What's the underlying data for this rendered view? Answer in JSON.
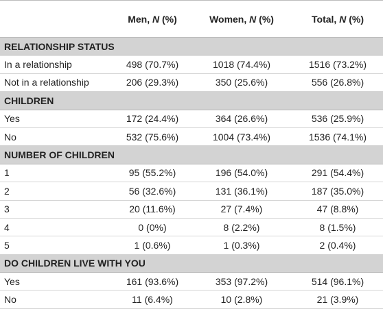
{
  "table": {
    "header": [
      {
        "text": "Men, ",
        "em": "N",
        "tail": " (%)"
      },
      {
        "text": "Women, ",
        "em": "N",
        "tail": " (%)"
      },
      {
        "text": "Total, ",
        "em": "N",
        "tail": " (%)"
      }
    ],
    "sections": [
      {
        "title": "RELATIONSHIP STATUS",
        "rows": [
          [
            "In a relationship",
            "498 (70.7%)",
            "1018 (74.4%)",
            "1516 (73.2%)"
          ],
          [
            "Not in a relationship",
            "206 (29.3%)",
            "350 (25.6%)",
            "556 (26.8%)"
          ]
        ]
      },
      {
        "title": "CHILDREN",
        "rows": [
          [
            "Yes",
            "172 (24.4%)",
            "364 (26.6%)",
            "536 (25.9%)"
          ],
          [
            "No",
            "532 (75.6%)",
            "1004 (73.4%)",
            "1536 (74.1%)"
          ]
        ]
      },
      {
        "title": "NUMBER OF CHILDREN",
        "rows": [
          [
            "1",
            "95 (55.2%)",
            "196 (54.0%)",
            "291 (54.4%)"
          ],
          [
            "2",
            "56 (32.6%)",
            "131 (36.1%)",
            "187 (35.0%)"
          ],
          [
            "3",
            "20 (11.6%)",
            "27 (7.4%)",
            "47 (8.8%)"
          ],
          [
            "4",
            "0 (0%)",
            "8 (2.2%)",
            "8 (1.5%)"
          ],
          [
            "5",
            "1 (0.6%)",
            "1 (0.3%)",
            "2 (0.4%)"
          ]
        ]
      },
      {
        "title": "DO CHILDREN LIVE WITH YOU",
        "rows": [
          [
            "Yes",
            "161 (93.6%)",
            "353 (97.2%)",
            "514 (96.1%)"
          ],
          [
            "No",
            "11 (6.4%)",
            "10 (2.8%)",
            "21 (3.9%)"
          ]
        ]
      }
    ]
  }
}
